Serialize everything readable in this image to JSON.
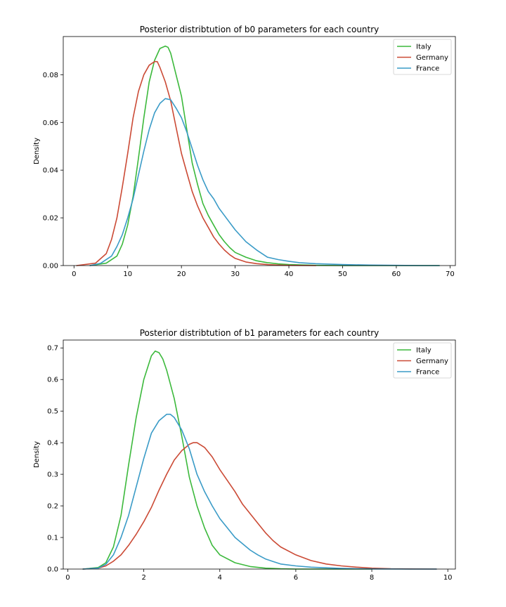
{
  "chart_data": [
    {
      "type": "line",
      "title": "Posterior distribtution of b0 parameters for each country",
      "xlabel": "",
      "ylabel": "Density",
      "xlim": [
        -2,
        71
      ],
      "ylim": [
        0,
        0.096
      ],
      "xticks": [
        0,
        10,
        20,
        30,
        40,
        50,
        60,
        70
      ],
      "yticks": [
        0.0,
        0.02,
        0.04,
        0.06,
        0.08
      ],
      "ytick_labels": [
        "0.00",
        "0.02",
        "0.04",
        "0.06",
        "0.08"
      ],
      "grid": false,
      "legend_position": "top-right",
      "series": [
        {
          "name": "Italy",
          "color": "#3cb93c",
          "x": [
            3,
            6,
            8,
            9,
            10,
            11,
            12,
            13,
            14,
            15,
            16,
            17,
            17.5,
            18,
            19,
            20,
            21,
            22,
            23,
            24,
            25,
            26,
            27,
            28,
            29,
            30,
            32,
            34,
            36,
            38,
            40,
            45,
            50,
            55,
            60,
            65,
            68
          ],
          "y": [
            0.0,
            0.001,
            0.004,
            0.009,
            0.017,
            0.029,
            0.045,
            0.062,
            0.077,
            0.086,
            0.091,
            0.092,
            0.0915,
            0.089,
            0.08,
            0.071,
            0.057,
            0.043,
            0.034,
            0.026,
            0.021,
            0.017,
            0.013,
            0.01,
            0.0075,
            0.0055,
            0.0035,
            0.002,
            0.0012,
            0.0007,
            0.0004,
            0.0001,
            0.0,
            0.0,
            0.0,
            0.0,
            0.0
          ]
        },
        {
          "name": "Germany",
          "color": "#cb4a35",
          "x": [
            0.5,
            4,
            6,
            7,
            8,
            9,
            10,
            11,
            12,
            13,
            14,
            15,
            15.5,
            16,
            17,
            18,
            19,
            20,
            21,
            22,
            23,
            24,
            25,
            26,
            27,
            28,
            29,
            30,
            32,
            34,
            36,
            38,
            40,
            45
          ],
          "y": [
            0.0,
            0.001,
            0.005,
            0.011,
            0.02,
            0.033,
            0.047,
            0.062,
            0.073,
            0.08,
            0.084,
            0.0855,
            0.0855,
            0.083,
            0.077,
            0.069,
            0.058,
            0.047,
            0.039,
            0.031,
            0.025,
            0.02,
            0.016,
            0.012,
            0.009,
            0.0065,
            0.0045,
            0.003,
            0.0015,
            0.0008,
            0.0004,
            0.0002,
            0.0001,
            0.0
          ]
        },
        {
          "name": "France",
          "color": "#3a9bc7",
          "x": [
            3,
            5,
            7,
            8,
            9,
            10,
            11,
            12,
            13,
            14,
            15,
            16,
            17,
            18,
            19,
            20,
            21,
            22,
            23,
            24,
            25,
            26,
            27,
            28,
            30,
            32,
            34,
            36,
            38,
            40,
            42,
            45,
            50,
            55,
            60,
            65,
            68
          ],
          "y": [
            0.0,
            0.001,
            0.004,
            0.008,
            0.013,
            0.02,
            0.028,
            0.038,
            0.048,
            0.057,
            0.064,
            0.068,
            0.07,
            0.0695,
            0.066,
            0.062,
            0.056,
            0.049,
            0.042,
            0.036,
            0.031,
            0.028,
            0.024,
            0.021,
            0.015,
            0.01,
            0.0065,
            0.0035,
            0.0025,
            0.0018,
            0.0012,
            0.0008,
            0.0004,
            0.0002,
            0.0001,
            0.0,
            0.0
          ]
        }
      ]
    },
    {
      "type": "line",
      "title": "Posterior distribtution of b1 parameters for each country",
      "xlabel": "",
      "ylabel": "Density",
      "xlim": [
        -0.12,
        10.2
      ],
      "ylim": [
        0,
        0.725
      ],
      "xticks": [
        0,
        2,
        4,
        6,
        8,
        10
      ],
      "yticks": [
        0.0,
        0.1,
        0.2,
        0.3,
        0.4,
        0.5,
        0.6,
        0.7
      ],
      "ytick_labels": [
        "0.0",
        "0.1",
        "0.2",
        "0.3",
        "0.4",
        "0.5",
        "0.6",
        "0.7"
      ],
      "grid": false,
      "legend_position": "top-right",
      "series": [
        {
          "name": "Italy",
          "color": "#3cb93c",
          "x": [
            0.4,
            0.8,
            1.0,
            1.2,
            1.4,
            1.6,
            1.8,
            2.0,
            2.2,
            2.3,
            2.4,
            2.5,
            2.6,
            2.8,
            3.0,
            3.2,
            3.4,
            3.6,
            3.8,
            4.0,
            4.4,
            4.8,
            5.2,
            5.6,
            6.0,
            7.0,
            8.0
          ],
          "y": [
            0.0,
            0.005,
            0.02,
            0.07,
            0.17,
            0.33,
            0.48,
            0.6,
            0.675,
            0.69,
            0.685,
            0.665,
            0.63,
            0.54,
            0.42,
            0.29,
            0.2,
            0.13,
            0.075,
            0.045,
            0.02,
            0.008,
            0.003,
            0.001,
            0.0,
            0.0,
            0.0
          ]
        },
        {
          "name": "Germany",
          "color": "#cb4a35",
          "x": [
            0.4,
            0.8,
            1.0,
            1.2,
            1.4,
            1.6,
            1.8,
            2.0,
            2.2,
            2.4,
            2.6,
            2.8,
            3.0,
            3.2,
            3.3,
            3.4,
            3.6,
            3.8,
            4.0,
            4.2,
            4.4,
            4.6,
            4.8,
            5.0,
            5.2,
            5.4,
            5.6,
            6.0,
            6.4,
            6.8,
            7.2,
            7.6,
            8.0,
            8.5,
            9.0,
            9.7
          ],
          "y": [
            0.0,
            0.003,
            0.01,
            0.025,
            0.045,
            0.075,
            0.11,
            0.15,
            0.195,
            0.25,
            0.3,
            0.345,
            0.375,
            0.395,
            0.4,
            0.4,
            0.385,
            0.355,
            0.315,
            0.28,
            0.245,
            0.205,
            0.175,
            0.145,
            0.115,
            0.09,
            0.07,
            0.045,
            0.027,
            0.016,
            0.01,
            0.006,
            0.003,
            0.001,
            0.0005,
            0.0
          ]
        },
        {
          "name": "France",
          "color": "#3a9bc7",
          "x": [
            0.4,
            0.8,
            1.0,
            1.2,
            1.4,
            1.6,
            1.8,
            2.0,
            2.2,
            2.4,
            2.6,
            2.7,
            2.8,
            3.0,
            3.2,
            3.4,
            3.6,
            3.8,
            4.0,
            4.2,
            4.4,
            4.6,
            4.8,
            5.0,
            5.2,
            5.4,
            5.6,
            6.0,
            6.4,
            6.8,
            7.2,
            7.6,
            8.0,
            9.0,
            9.7
          ],
          "y": [
            0.0,
            0.003,
            0.015,
            0.045,
            0.1,
            0.17,
            0.26,
            0.35,
            0.43,
            0.47,
            0.49,
            0.49,
            0.48,
            0.44,
            0.38,
            0.3,
            0.245,
            0.2,
            0.16,
            0.13,
            0.1,
            0.08,
            0.06,
            0.045,
            0.032,
            0.024,
            0.016,
            0.01,
            0.006,
            0.004,
            0.002,
            0.001,
            0.0005,
            0.0,
            0.0
          ]
        }
      ]
    }
  ]
}
